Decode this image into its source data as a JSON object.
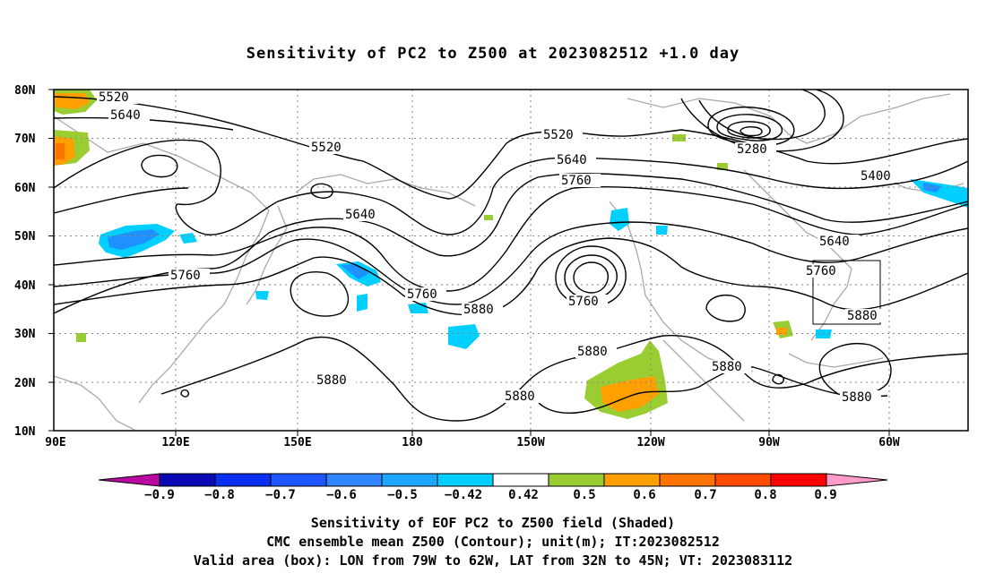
{
  "title": "Sensitivity of PC2 to Z500 at 2023082512 +1.0 day",
  "lat_labels": [
    "80N",
    "70N",
    "60N",
    "50N",
    "40N",
    "30N",
    "20N",
    "10N"
  ],
  "lon_labels": [
    "90E",
    "120E",
    "150E",
    "180",
    "150W",
    "120W",
    "90W",
    "60W"
  ],
  "contour_labels": [
    {
      "text": "5520"
    },
    {
      "text": "5640"
    },
    {
      "text": "5520"
    },
    {
      "text": "5520"
    },
    {
      "text": "5640"
    },
    {
      "text": "5760"
    },
    {
      "text": "5280"
    },
    {
      "text": "5400"
    },
    {
      "text": "5640"
    },
    {
      "text": "5640"
    },
    {
      "text": "5760"
    },
    {
      "text": "5760"
    },
    {
      "text": "5760"
    },
    {
      "text": "5880"
    },
    {
      "text": "5760"
    },
    {
      "text": "5880"
    },
    {
      "text": "5880"
    },
    {
      "text": "5880"
    },
    {
      "text": "5880"
    },
    {
      "text": "5880"
    },
    {
      "text": "5880"
    }
  ],
  "colorbar": {
    "colors": [
      "#b80aa0",
      "#0a0ab4",
      "#0a2ff0",
      "#1f55ff",
      "#2f85ff",
      "#1ea6ff",
      "#00cfff",
      "#ffffff",
      "#9acd32",
      "#ff9f00",
      "#ff7300",
      "#ff4a00",
      "#ff0000",
      "#ff9ccb"
    ],
    "labels": [
      "−0.9",
      "−0.8",
      "−0.7",
      "−0.6",
      "−0.5",
      "−0.42",
      "0.42",
      "0.5",
      "0.6",
      "0.7",
      "0.8",
      "0.9"
    ]
  },
  "caption": {
    "line1": "Sensitivity of EOF PC2 to Z500 field (Shaded)",
    "line2": "CMC ensemble mean Z500 (Contour); unit(m); IT:2023082512",
    "line3": "Valid area (box): LON from 79W to 62W, LAT from 32N to 45N; VT: 2023083112"
  }
}
